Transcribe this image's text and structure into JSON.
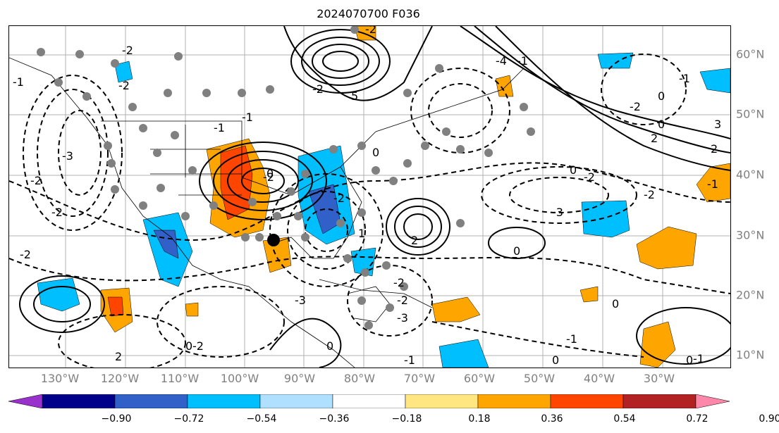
{
  "title": "2024070700 F036",
  "map": {
    "lon_labels": [
      "130°W",
      "120°W",
      "110°W",
      "100°W",
      "90°W",
      "80°W",
      "70°W",
      "60°W",
      "50°W",
      "40°W",
      "30°W"
    ],
    "lat_labels": [
      "60°N",
      "50°N",
      "40°N",
      "30°N",
      "20°N",
      "10°N"
    ],
    "contour_labels": [
      "-2",
      "-2",
      "-3",
      "-2",
      "-2",
      "-2",
      "-1",
      "-1",
      "0",
      "-1",
      "-2",
      "0",
      "-2",
      "1",
      "2",
      "3",
      "0",
      "-2",
      "-3",
      "-2",
      "-2",
      "2",
      "2",
      "0",
      "-1",
      "0",
      "-3",
      "-4",
      "5",
      "-2",
      "-2",
      "-2",
      "0",
      "-3",
      "-2",
      "2",
      "3",
      "-1",
      "-2",
      "-1",
      "0",
      "0",
      "-2",
      "-1",
      "0",
      "0",
      "-1",
      "-1",
      "-1",
      "0"
    ],
    "marker": "black-dot"
  },
  "colorbar": {
    "tick_labels": [
      "−0.90",
      "−0.72",
      "−0.54",
      "−0.36",
      "−0.18",
      "0.18",
      "0.36",
      "0.54",
      "0.72",
      "0.90"
    ],
    "colors": [
      "#9932cc",
      "#00008b",
      "#3060c8",
      "#00bfff",
      "#b0e0ff",
      "#ffffff",
      "#ffe680",
      "#ffa500",
      "#ff4500",
      "#b22222",
      "#ff88aa"
    ],
    "extend": "both"
  }
}
